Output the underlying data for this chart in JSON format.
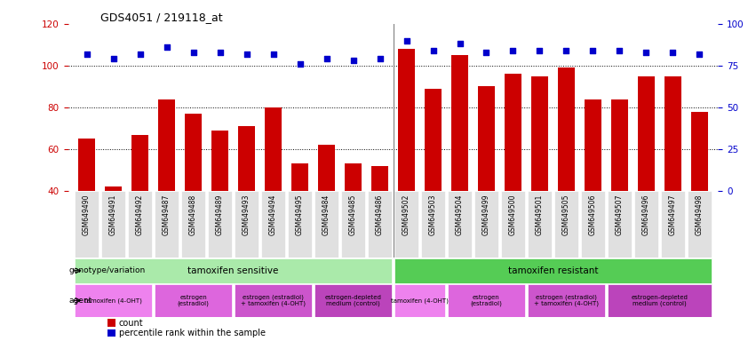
{
  "title": "GDS4051 / 219118_at",
  "samples": [
    "GSM649490",
    "GSM649491",
    "GSM649492",
    "GSM649487",
    "GSM649488",
    "GSM649489",
    "GSM649493",
    "GSM649494",
    "GSM649495",
    "GSM649484",
    "GSM649485",
    "GSM649486",
    "GSM649502",
    "GSM649503",
    "GSM649504",
    "GSM649499",
    "GSM649500",
    "GSM649501",
    "GSM649505",
    "GSM649506",
    "GSM649507",
    "GSM649496",
    "GSM649497",
    "GSM649498"
  ],
  "counts": [
    65,
    42,
    67,
    84,
    77,
    69,
    71,
    80,
    53,
    62,
    53,
    52,
    108,
    89,
    105,
    90,
    96,
    95,
    99,
    84,
    84,
    95,
    95,
    78
  ],
  "percentile": [
    82,
    79,
    82,
    86,
    83,
    83,
    82,
    82,
    76,
    79,
    78,
    79,
    90,
    84,
    88,
    83,
    84,
    84,
    84,
    84,
    84,
    83,
    83,
    82
  ],
  "bar_color": "#cc0000",
  "dot_color": "#0000cc",
  "ylim_left": [
    40,
    120
  ],
  "ylim_right": [
    0,
    100
  ],
  "yticks_left": [
    40,
    60,
    80,
    100,
    120
  ],
  "yticks_right": [
    0,
    25,
    50,
    75,
    100
  ],
  "grid_vals": [
    60,
    80,
    100
  ],
  "genotype_groups": [
    {
      "label": "tamoxifen sensitive",
      "start": 0,
      "end": 12,
      "color": "#aaeaaa"
    },
    {
      "label": "tamoxifen resistant",
      "start": 12,
      "end": 24,
      "color": "#55cc55"
    }
  ],
  "agent_groups_left": [
    {
      "label": "tamoxifen (4-OHT)",
      "start": 0,
      "end": 3,
      "color": "#ee82ee"
    },
    {
      "label": "estrogen\n(estradiol)",
      "start": 3,
      "end": 6,
      "color": "#ee82ee"
    },
    {
      "label": "estrogen (estradiol)\n+ tamoxifen (4-OHT)",
      "start": 6,
      "end": 9,
      "color": "#ee82ee"
    },
    {
      "label": "estrogen-depleted\nmedium (control)",
      "start": 9,
      "end": 12,
      "color": "#ee82ee"
    }
  ],
  "agent_groups_right": [
    {
      "label": "tamoxifen (4-OHT)",
      "start": 12,
      "end": 14,
      "color": "#ee82ee"
    },
    {
      "label": "estrogen\n(estradiol)",
      "start": 14,
      "end": 17,
      "color": "#ee82ee"
    },
    {
      "label": "estrogen (estradiol)\n+ tamoxifen (4-OHT)",
      "start": 17,
      "end": 20,
      "color": "#ee82ee"
    },
    {
      "label": "estrogen-depleted\nmedium (control)",
      "start": 20,
      "end": 24,
      "color": "#ee82ee"
    }
  ],
  "genotype_label": "genotype/variation",
  "agent_label": "agent",
  "legend_count_label": "count",
  "legend_percentile_label": "percentile rank within the sample",
  "background_color": "#ffffff",
  "axis_tick_color_left": "#cc0000",
  "axis_tick_color_right": "#0000cc",
  "xticklabel_bg": "#e0e0e0"
}
